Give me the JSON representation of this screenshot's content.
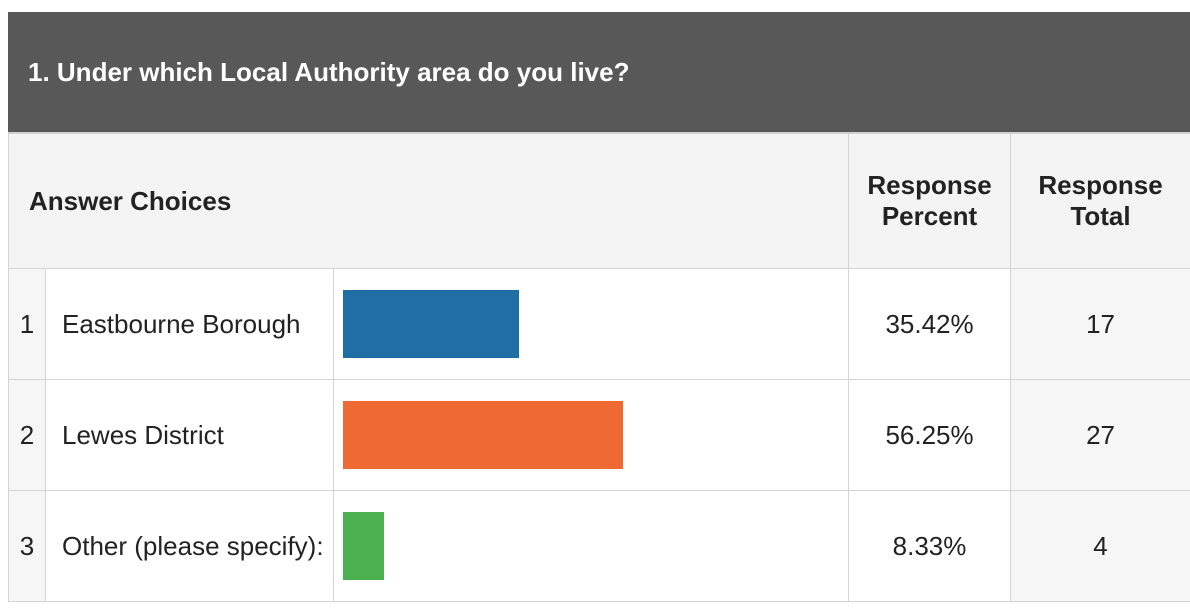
{
  "question": "1. Under which Local Authority area do you live?",
  "columns": {
    "choices": "Answer Choices",
    "percent": "Response Percent",
    "total": "Response Total"
  },
  "rows": [
    {
      "number": "1",
      "label": "Eastbourne Borough",
      "percent": 35.42,
      "percent_label": "35.42%",
      "total": "17",
      "color": "#1f6fa6"
    },
    {
      "number": "2",
      "label": "Lewes District",
      "percent": 56.25,
      "percent_label": "56.25%",
      "total": "27",
      "color": "#ef6a33"
    },
    {
      "number": "3",
      "label": "Other (please specify):",
      "percent": 8.33,
      "percent_label": "8.33%",
      "total": "4",
      "color": "#4caf50"
    }
  ]
}
